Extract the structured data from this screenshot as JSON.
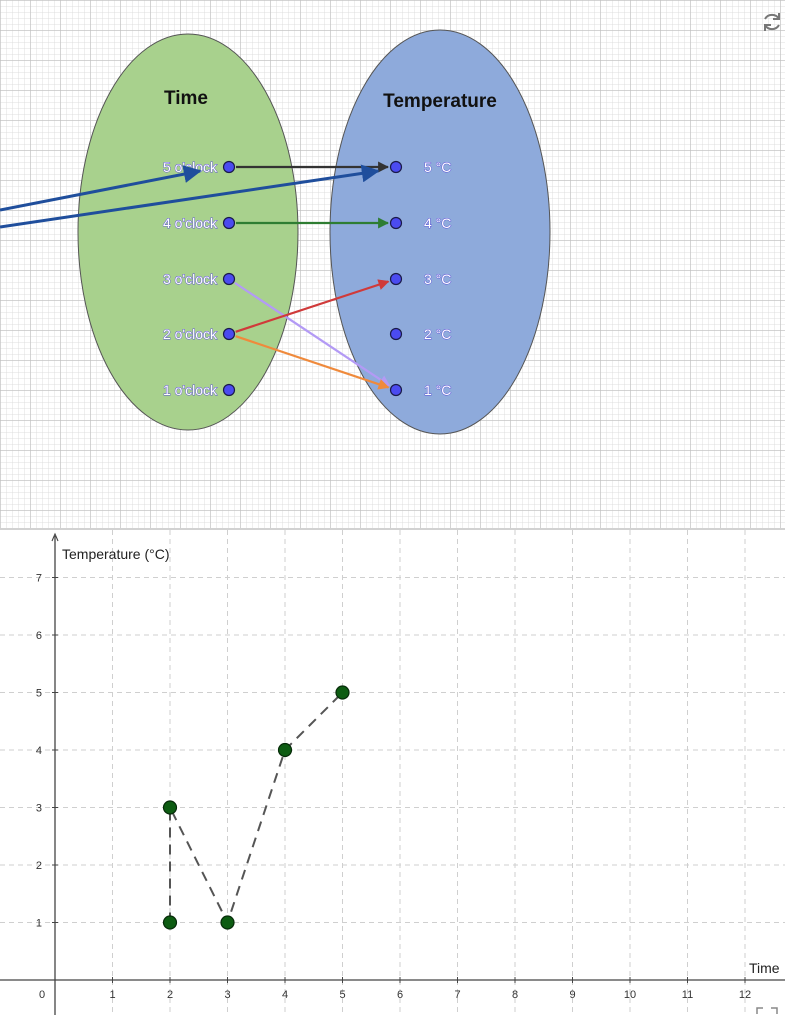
{
  "diagram": {
    "domain_title": "Time",
    "range_title": "Temperature",
    "domain_items": [
      "5 o'clock",
      "4 o'clock",
      "3 o'clock",
      "2 o'clock",
      "1 o'clock"
    ],
    "range_items": [
      "5 °C",
      "4 °C",
      "3 °C",
      "2 °C",
      "1 °C"
    ],
    "mappings": [
      {
        "from": "5 o'clock",
        "to": "5 °C",
        "color": "#333333"
      },
      {
        "from": "4 o'clock",
        "to": "4 °C",
        "color": "#2e7d32"
      },
      {
        "from": "3 o'clock",
        "to": "1 °C",
        "color": "#b39af5"
      },
      {
        "from": "2 o'clock",
        "to": "3 °C",
        "color": "#d03a3a"
      },
      {
        "from": "2 o'clock",
        "to": "1 °C",
        "color": "#ef8a3c"
      }
    ],
    "colors": {
      "domain_oval": "#a8d18d",
      "range_oval": "#8eaadb",
      "annotation_arrows": "#1f4e9c",
      "point": "#4b4bf0"
    }
  },
  "chart_data": {
    "type": "scatter",
    "xlabel": "Time",
    "ylabel": "Temperature (°C)",
    "x_ticks": [
      "0",
      "1",
      "2",
      "3",
      "4",
      "5",
      "6",
      "7",
      "8",
      "9",
      "10",
      "11",
      "12"
    ],
    "y_ticks": [
      "1",
      "2",
      "3",
      "4",
      "5",
      "6",
      "7"
    ],
    "xlim": [
      -0.25,
      12.9
    ],
    "ylim": [
      -0.25,
      7.7
    ],
    "points": [
      [
        2,
        1
      ],
      [
        2,
        3
      ],
      [
        3,
        1
      ],
      [
        4,
        4
      ],
      [
        5,
        5
      ]
    ],
    "connector_order": [
      [
        2,
        1
      ],
      [
        2,
        3
      ],
      [
        3,
        1
      ],
      [
        4,
        4
      ],
      [
        5,
        5
      ]
    ],
    "connector_style": "dashed",
    "grid": true,
    "point_color": "#0d5c12"
  }
}
